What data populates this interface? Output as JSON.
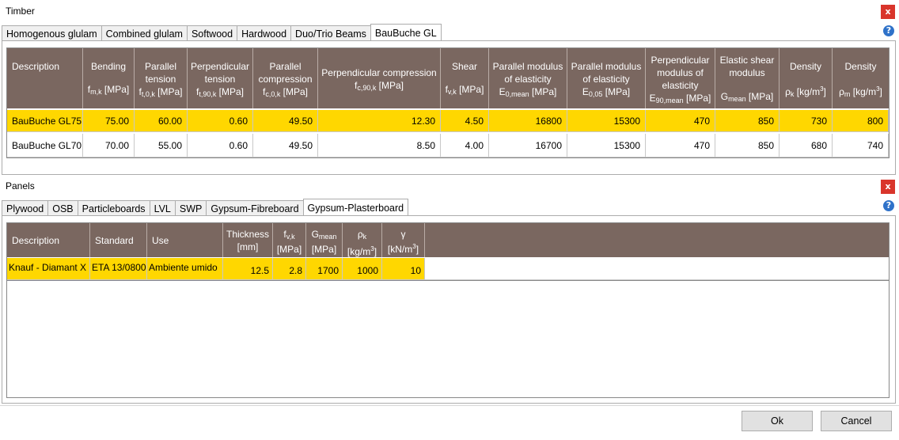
{
  "timber": {
    "title": "Timber",
    "close_label": "x",
    "help_label": "?",
    "tabs": [
      "Homogenous glulam",
      "Combined glulam",
      "Softwood",
      "Hardwood",
      "Duo/Trio Beams",
      "BauBuche GL"
    ],
    "active_tab": "BauBuche GL",
    "columns": [
      {
        "label": "Description",
        "sub": ""
      },
      {
        "label": "Bending",
        "sub": "fm,k [MPa]"
      },
      {
        "label": "Parallel tension",
        "sub": "ft,0,k [MPa]"
      },
      {
        "label": "Perpendicular tension",
        "sub": "ft,90,k [MPa]"
      },
      {
        "label": "Parallel compression",
        "sub": "fc,0,k [MPa]"
      },
      {
        "label": "Perpendicular compression",
        "sub": "fc,90,k [MPa]"
      },
      {
        "label": "Shear",
        "sub": "fv,k [MPa]"
      },
      {
        "label": "Parallel modulus of elasticity",
        "sub": "E0,mean [MPa]"
      },
      {
        "label": "Parallel modulus of elasticity",
        "sub": "E0,05 [MPa]"
      },
      {
        "label": "Perpendicular modulus of elasticity",
        "sub": "E90,mean [MPa]"
      },
      {
        "label": "Elastic shear modulus",
        "sub": "Gmean [MPa]"
      },
      {
        "label": "Density",
        "sub": "ρk [kg/m³]"
      },
      {
        "label": "Density",
        "sub": "ρm [kg/m³]"
      }
    ],
    "rows": [
      [
        "BauBuche GL75",
        "75.00",
        "60.00",
        "0.60",
        "49.50",
        "12.30",
        "4.50",
        "16800",
        "15300",
        "470",
        "850",
        "730",
        "800"
      ],
      [
        "BauBuche GL70",
        "70.00",
        "55.00",
        "0.60",
        "49.50",
        "8.50",
        "4.00",
        "16700",
        "15300",
        "470",
        "850",
        "680",
        "740"
      ]
    ]
  },
  "panels": {
    "title": "Panels",
    "close_label": "x",
    "help_label": "?",
    "tabs": [
      "Plywood",
      "OSB",
      "Particleboards",
      "LVL",
      "SWP",
      "Gypsum-Fibreboard",
      "Gypsum-Plasterboard"
    ],
    "active_tab": "Gypsum-Plasterboard",
    "columns": [
      {
        "label": "Description",
        "sub": ""
      },
      {
        "label": "Standard",
        "sub": ""
      },
      {
        "label": "Use",
        "sub": ""
      },
      {
        "label": "Thickness",
        "sub": "[mm]"
      },
      {
        "label": "fv,k",
        "sub": "[MPa]"
      },
      {
        "label": "Gmean",
        "sub": "[MPa]"
      },
      {
        "label": "ρk",
        "sub": "[kg/m³]"
      },
      {
        "label": "γ",
        "sub": "[kN/m³]"
      }
    ],
    "rows": [
      [
        "Knauf - Diamant X",
        "ETA 13/0800",
        "Ambiente umido",
        "12.5",
        "2.8",
        "1700",
        "1000",
        "10"
      ]
    ]
  },
  "buttons": {
    "ok": "Ok",
    "cancel": "Cancel"
  },
  "colors": {
    "header_bg": "#7a6760",
    "selected_row": "#ffd700",
    "close_red": "#d9352b",
    "help_blue": "#2f72c9"
  }
}
